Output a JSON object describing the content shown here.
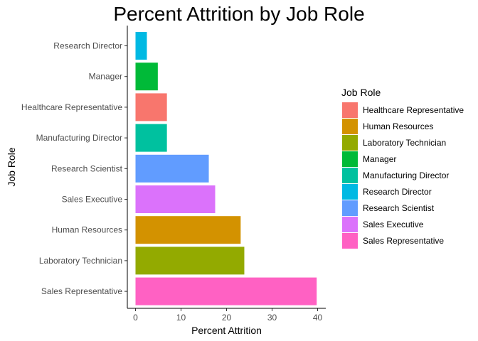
{
  "chart_data": {
    "type": "bar",
    "orientation": "horizontal",
    "title": "Percent Attrition by Job Role",
    "xlabel": "Percent Attrition",
    "ylabel": "Job Role",
    "xlim": [
      0,
      40
    ],
    "x_ticks": [
      0,
      10,
      20,
      30,
      40
    ],
    "grid": false,
    "legend_placement": "right",
    "legend_title": "Job Role",
    "legend_entries": [
      {
        "label": "Healthcare Representative",
        "color": "#F8766D"
      },
      {
        "label": "Human Resources",
        "color": "#D39200"
      },
      {
        "label": "Laboratory Technician",
        "color": "#93AA00"
      },
      {
        "label": "Manager",
        "color": "#00BA38"
      },
      {
        "label": "Manufacturing Director",
        "color": "#00C19F"
      },
      {
        "label": "Research Director",
        "color": "#00B9E3"
      },
      {
        "label": "Research Scientist",
        "color": "#619CFF"
      },
      {
        "label": "Sales Executive",
        "color": "#DB72FB"
      },
      {
        "label": "Sales Representative",
        "color": "#FF61C3"
      }
    ],
    "categories": [
      "Research Director",
      "Manager",
      "Healthcare Representative",
      "Manufacturing Director",
      "Research Scientist",
      "Sales Executive",
      "Human Resources",
      "Laboratory Technician",
      "Sales Representative"
    ],
    "values": [
      2.5,
      4.9,
      6.9,
      6.9,
      16.1,
      17.5,
      23.1,
      23.9,
      39.8
    ],
    "colors": [
      "#00B9E3",
      "#00BA38",
      "#F8766D",
      "#00C19F",
      "#619CFF",
      "#DB72FB",
      "#D39200",
      "#93AA00",
      "#FF61C3"
    ]
  }
}
